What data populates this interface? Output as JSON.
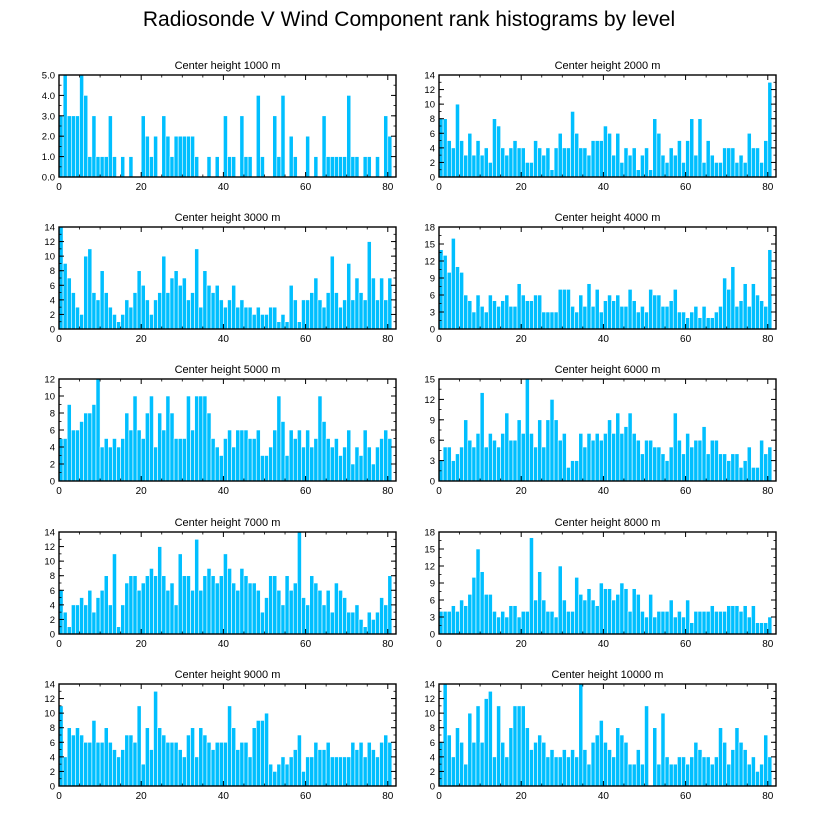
{
  "title": "Radiosonde V Wind Component rank histograms by level",
  "colors": {
    "bar": "#00bfff",
    "bar_edge": "#ffffff",
    "axis": "#000000",
    "background": "#ffffff"
  },
  "chart_data": [
    {
      "type": "bar",
      "title": "Center height 1000 m",
      "ylim": [
        0,
        5
      ],
      "yticks": [
        "0.0",
        "1.0",
        "2.0",
        "3.0",
        "4.0",
        "5.0"
      ],
      "xlim": [
        0,
        82
      ],
      "xticks": [
        0,
        20,
        40,
        60,
        80
      ],
      "values": [
        3,
        5,
        3,
        3,
        3,
        5,
        4,
        1,
        3,
        1,
        1,
        1,
        3,
        1,
        0,
        1,
        0,
        1,
        0,
        0,
        3,
        2,
        1,
        2,
        0,
        3,
        2,
        1,
        2,
        2,
        2,
        2,
        2,
        1,
        0,
        0,
        1,
        0,
        1,
        0,
        3,
        1,
        1,
        0,
        3,
        1,
        1,
        0,
        4,
        1,
        0,
        0,
        3,
        1,
        4,
        0,
        2,
        1,
        0,
        0,
        2,
        0,
        1,
        0,
        3,
        1,
        1,
        1,
        1,
        1,
        4,
        1,
        1,
        0,
        1,
        1,
        0,
        1,
        0,
        3,
        2
      ]
    },
    {
      "type": "bar",
      "title": "Center height 2000 m",
      "ylim": [
        0,
        14
      ],
      "yticks": [
        "0",
        "2",
        "4",
        "6",
        "8",
        "10",
        "12",
        "14"
      ],
      "xlim": [
        0,
        82
      ],
      "xticks": [
        0,
        20,
        40,
        60,
        80
      ],
      "values": [
        8,
        8,
        5,
        4,
        10,
        5,
        3,
        6,
        3,
        5,
        3,
        4,
        2,
        8,
        7,
        4,
        3,
        4,
        5,
        4,
        4,
        2,
        2,
        5,
        4,
        3,
        4,
        1,
        4,
        6,
        4,
        4,
        9,
        6,
        4,
        4,
        3,
        5,
        5,
        5,
        7,
        6,
        3,
        6,
        2,
        4,
        3,
        4,
        1,
        3,
        4,
        1,
        8,
        6,
        3,
        2,
        4,
        3,
        5,
        2,
        5,
        8,
        3,
        8,
        2,
        5,
        3,
        2,
        2,
        4,
        4,
        4,
        2,
        3,
        2,
        6,
        4,
        4,
        2,
        5,
        13
      ]
    },
    {
      "type": "bar",
      "title": "Center height 3000 m",
      "ylim": [
        0,
        14
      ],
      "yticks": [
        "0",
        "2",
        "4",
        "6",
        "8",
        "10",
        "12",
        "14"
      ],
      "xlim": [
        0,
        82
      ],
      "xticks": [
        0,
        20,
        40,
        60,
        80
      ],
      "values": [
        14,
        9,
        7,
        5,
        3,
        2,
        10,
        11,
        5,
        4,
        8,
        5,
        3,
        2,
        1,
        2,
        4,
        3,
        5,
        8,
        6,
        4,
        2,
        4,
        5,
        10,
        5,
        7,
        8,
        6,
        7,
        4,
        5,
        11,
        3,
        8,
        6,
        5,
        6,
        4,
        3,
        4,
        6,
        3,
        4,
        3,
        3,
        2,
        3,
        2,
        2,
        3,
        3,
        1,
        2,
        1,
        6,
        4,
        1,
        4,
        4,
        5,
        7,
        4,
        3,
        5,
        10,
        5,
        3,
        4,
        9,
        4,
        7,
        5,
        4,
        12,
        7,
        4,
        7,
        4,
        7
      ]
    },
    {
      "type": "bar",
      "title": "Center height 4000 m",
      "ylim": [
        0,
        18
      ],
      "yticks": [
        "0",
        "3",
        "6",
        "9",
        "12",
        "15",
        "18"
      ],
      "xlim": [
        0,
        82
      ],
      "xticks": [
        0,
        20,
        40,
        60,
        80
      ],
      "values": [
        14,
        13,
        10,
        16,
        11,
        10,
        6,
        5,
        3,
        6,
        4,
        3,
        6,
        5,
        4,
        5,
        6,
        4,
        4,
        8,
        6,
        5,
        5,
        6,
        6,
        3,
        3,
        3,
        3,
        7,
        7,
        7,
        4,
        3,
        6,
        4,
        8,
        4,
        7,
        3,
        5,
        6,
        5,
        6,
        4,
        4,
        7,
        5,
        3,
        4,
        3,
        7,
        6,
        6,
        4,
        4,
        5,
        7,
        3,
        3,
        2,
        3,
        4,
        2,
        4,
        2,
        2,
        3,
        4,
        9,
        7,
        11,
        4,
        5,
        8,
        4,
        8,
        6,
        5,
        4,
        14
      ]
    },
    {
      "type": "bar",
      "title": "Center height 5000 m",
      "ylim": [
        0,
        12
      ],
      "yticks": [
        "0",
        "2",
        "4",
        "6",
        "8",
        "10",
        "12"
      ],
      "xlim": [
        0,
        82
      ],
      "xticks": [
        0,
        20,
        40,
        60,
        80
      ],
      "values": [
        5,
        5,
        9,
        6,
        6,
        7,
        8,
        8,
        9,
        12,
        4,
        5,
        4,
        5,
        4,
        5,
        8,
        6,
        10,
        6,
        5,
        8,
        10,
        4,
        8,
        6,
        10,
        8,
        5,
        5,
        5,
        10,
        6,
        10,
        10,
        10,
        8,
        5,
        4,
        3,
        5,
        6,
        4,
        6,
        6,
        6,
        5,
        5,
        6,
        3,
        3,
        4,
        6,
        10,
        7,
        3,
        6,
        5,
        6,
        4,
        6,
        4,
        5,
        10,
        7,
        5,
        4,
        5,
        3,
        4,
        6,
        2,
        4,
        3,
        6,
        4,
        2,
        4,
        5,
        6,
        5
      ]
    },
    {
      "type": "bar",
      "title": "Center height 6000 m",
      "ylim": [
        0,
        15
      ],
      "yticks": [
        "0",
        "3",
        "6",
        "9",
        "12",
        "15"
      ],
      "xlim": [
        0,
        82
      ],
      "xticks": [
        0,
        20,
        40,
        60,
        80
      ],
      "values": [
        3,
        5,
        5,
        3,
        4,
        5,
        9,
        6,
        5,
        7,
        13,
        5,
        7,
        6,
        5,
        7,
        10,
        6,
        6,
        9,
        7,
        15,
        7,
        5,
        9,
        5,
        9,
        12,
        9,
        6,
        7,
        2,
        3,
        3,
        7,
        5,
        7,
        6,
        7,
        6,
        7,
        9,
        7,
        10,
        7,
        8,
        10,
        7,
        6,
        4,
        6,
        6,
        5,
        5,
        4,
        3,
        5,
        10,
        6,
        4,
        7,
        5,
        6,
        6,
        8,
        4,
        6,
        6,
        4,
        4,
        3,
        4,
        4,
        2,
        3,
        5,
        2,
        2,
        6,
        4,
        5
      ]
    },
    {
      "type": "bar",
      "title": "Center height 7000 m",
      "ylim": [
        0,
        14
      ],
      "yticks": [
        "0",
        "2",
        "4",
        "6",
        "8",
        "10",
        "12",
        "14"
      ],
      "xlim": [
        0,
        82
      ],
      "xticks": [
        0,
        20,
        40,
        60,
        80
      ],
      "values": [
        6,
        3,
        1,
        4,
        4,
        5,
        4,
        6,
        3,
        5,
        6,
        8,
        4,
        11,
        1,
        4,
        7,
        8,
        8,
        6,
        7,
        8,
        9,
        8,
        12,
        8,
        6,
        7,
        4,
        11,
        8,
        8,
        6,
        13,
        6,
        8,
        9,
        8,
        7,
        8,
        11,
        9,
        7,
        6,
        9,
        8,
        7,
        7,
        6,
        3,
        5,
        8,
        8,
        6,
        4,
        8,
        6,
        7,
        14,
        5,
        4,
        8,
        7,
        6,
        4,
        6,
        3,
        7,
        6,
        5,
        3,
        3,
        4,
        2,
        1,
        3,
        2,
        3,
        5,
        4,
        8
      ]
    },
    {
      "type": "bar",
      "title": "Center height 8000 m",
      "ylim": [
        0,
        18
      ],
      "yticks": [
        "0",
        "3",
        "6",
        "9",
        "12",
        "15",
        "18"
      ],
      "xlim": [
        0,
        82
      ],
      "xticks": [
        0,
        20,
        40,
        60,
        80
      ],
      "values": [
        4,
        4,
        4,
        5,
        4,
        6,
        5,
        7,
        10,
        15,
        11,
        7,
        7,
        4,
        3,
        4,
        3,
        5,
        5,
        3,
        4,
        4,
        17,
        6,
        11,
        6,
        4,
        4,
        3,
        12,
        6,
        4,
        4,
        10,
        7,
        6,
        8,
        6,
        5,
        9,
        8,
        8,
        6,
        7,
        9,
        8,
        4,
        8,
        7,
        4,
        3,
        7,
        3,
        4,
        4,
        4,
        6,
        3,
        4,
        3,
        6,
        2,
        4,
        4,
        4,
        4,
        5,
        4,
        4,
        4,
        5,
        5,
        5,
        4,
        5,
        3,
        5,
        2,
        2,
        2,
        3
      ]
    },
    {
      "type": "bar",
      "title": "Center height 9000 m",
      "ylim": [
        0,
        14
      ],
      "yticks": [
        "0",
        "2",
        "4",
        "6",
        "8",
        "10",
        "12",
        "14"
      ],
      "xlim": [
        0,
        82
      ],
      "xticks": [
        0,
        20,
        40,
        60,
        80
      ],
      "values": [
        11,
        4,
        8,
        7,
        8,
        7,
        6,
        6,
        9,
        6,
        6,
        8,
        6,
        5,
        4,
        5,
        7,
        7,
        6,
        11,
        3,
        8,
        5,
        13,
        8,
        7,
        6,
        6,
        6,
        5,
        4,
        7,
        8,
        4,
        8,
        7,
        6,
        5,
        6,
        6,
        6,
        11,
        8,
        5,
        6,
        6,
        4,
        8,
        9,
        9,
        10,
        3,
        2,
        3,
        4,
        3,
        4,
        5,
        7,
        2,
        4,
        4,
        6,
        5,
        5,
        6,
        4,
        4,
        4,
        4,
        4,
        6,
        5,
        6,
        4,
        6,
        5,
        4,
        6,
        7,
        6
      ]
    },
    {
      "type": "bar",
      "title": "Center height 10000 m",
      "ylim": [
        0,
        14
      ],
      "yticks": [
        "0",
        "2",
        "4",
        "6",
        "8",
        "10",
        "12",
        "14"
      ],
      "xlim": [
        0,
        82
      ],
      "xticks": [
        0,
        20,
        40,
        60,
        80
      ],
      "values": [
        6,
        14,
        7,
        4,
        8,
        6,
        3,
        10,
        6,
        11,
        6,
        12,
        13,
        4,
        11,
        6,
        4,
        8,
        11,
        11,
        11,
        8,
        5,
        6,
        7,
        6,
        4,
        5,
        4,
        4,
        5,
        4,
        5,
        4,
        14,
        5,
        3,
        6,
        7,
        9,
        6,
        5,
        4,
        8,
        7,
        6,
        3,
        3,
        5,
        3,
        11,
        0,
        8,
        3,
        10,
        4,
        3,
        3,
        4,
        4,
        3,
        4,
        6,
        5,
        4,
        4,
        3,
        4,
        8,
        6,
        3,
        5,
        8,
        6,
        5,
        3,
        4,
        2,
        3,
        7,
        4
      ]
    }
  ]
}
